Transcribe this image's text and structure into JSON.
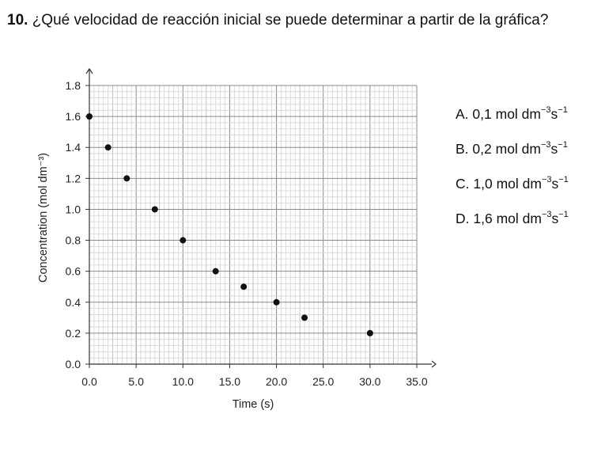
{
  "question": {
    "number": "10.",
    "text": "¿Qué velocidad de reacción inicial se puede determinar a partir de la gráfica?"
  },
  "options": [
    {
      "letter": "A.",
      "value": "0,1",
      "unit": "mol dm",
      "exp1": "−3",
      "unit2": "s",
      "exp2": "−1"
    },
    {
      "letter": "B.",
      "value": "0,2",
      "unit": "mol dm",
      "exp1": "−3",
      "unit2": "s",
      "exp2": "−1"
    },
    {
      "letter": "C.",
      "value": "1,0",
      "unit": "mol dm",
      "exp1": "−3",
      "unit2": "s",
      "exp2": "−1"
    },
    {
      "letter": "D.",
      "value": "1,6",
      "unit": "mol dm",
      "exp1": "−3",
      "unit2": "s",
      "exp2": "−1"
    }
  ],
  "chart_data": {
    "type": "scatter",
    "xlabel": "Time (s)",
    "ylabel": "Concentration (mol dm⁻³)",
    "xlim": [
      0,
      35
    ],
    "ylim": [
      0,
      1.8
    ],
    "xticks": [
      0,
      5,
      10,
      15,
      20,
      25,
      30,
      35
    ],
    "yticks": [
      0,
      0.2,
      0.4,
      0.6,
      0.8,
      1.0,
      1.2,
      1.4,
      1.6,
      1.8
    ],
    "xtick_labels": [
      "0.0",
      "5.0",
      "10.0",
      "15.0",
      "20.0",
      "25.0",
      "30.0",
      "35.0"
    ],
    "ytick_labels": [
      "0.0",
      "0.2",
      "0.4",
      "0.6",
      "0.8",
      "1.0",
      "1.2",
      "1.4",
      "1.6",
      "1.8"
    ],
    "grid": true,
    "points": [
      {
        "x": 0,
        "y": 1.6
      },
      {
        "x": 2,
        "y": 1.4
      },
      {
        "x": 4,
        "y": 1.2
      },
      {
        "x": 7,
        "y": 1.0
      },
      {
        "x": 10,
        "y": 0.8
      },
      {
        "x": 13.5,
        "y": 0.6
      },
      {
        "x": 16.5,
        "y": 0.5
      },
      {
        "x": 20,
        "y": 0.4
      },
      {
        "x": 23,
        "y": 0.3
      },
      {
        "x": 30,
        "y": 0.2
      }
    ],
    "marker_color": "#111111"
  }
}
